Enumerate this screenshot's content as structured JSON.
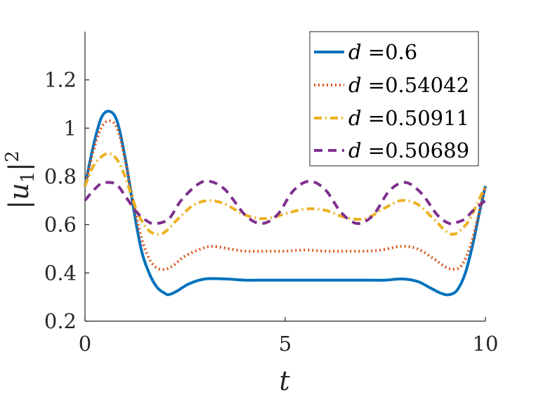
{
  "chart_data": {
    "type": "line",
    "title": "",
    "xlabel": "t",
    "ylabel": "|u_1|^2",
    "ylabel_parts": {
      "bar_left": "|",
      "var": "u",
      "sub": "1",
      "bar_right": "|",
      "sup": "2"
    },
    "xlim": [
      0,
      10
    ],
    "ylim": [
      0.2,
      1.4
    ],
    "xticks": [
      0,
      5,
      10
    ],
    "xtick_labels": [
      "0",
      "5",
      "10"
    ],
    "yticks": [
      0.2,
      0.4,
      0.6,
      0.8,
      1.0,
      1.2
    ],
    "ytick_labels": [
      "0.2",
      "0.4",
      "0.6",
      "0.8",
      "1",
      "1.2"
    ],
    "grid": false,
    "legend_position": "top-right",
    "series": [
      {
        "name": "d =0.6",
        "d_symbol": "d",
        "d_value": "=0.6",
        "color": "#0072BD",
        "style": "solid",
        "x": [
          0,
          0.2,
          0.4,
          0.6,
          0.8,
          1.0,
          1.2,
          1.4,
          1.6,
          1.8,
          2.0,
          2.1,
          2.3,
          2.6,
          3.0,
          3.5,
          4.0,
          4.5,
          5.0,
          5.5,
          6.0,
          6.5,
          7.0,
          7.5,
          7.9,
          8.3,
          8.6,
          8.9,
          9.1,
          9.3,
          9.5,
          9.7,
          9.85,
          10.0
        ],
        "y": [
          0.76,
          0.92,
          1.04,
          1.07,
          1.03,
          0.88,
          0.68,
          0.5,
          0.4,
          0.34,
          0.315,
          0.31,
          0.325,
          0.355,
          0.375,
          0.375,
          0.37,
          0.37,
          0.37,
          0.37,
          0.37,
          0.37,
          0.37,
          0.37,
          0.375,
          0.365,
          0.34,
          0.315,
          0.31,
          0.33,
          0.4,
          0.53,
          0.65,
          0.76
        ]
      },
      {
        "name": "d =0.54042",
        "d_symbol": "d",
        "d_value": "=0.54042",
        "color": "#D95319",
        "style": "dotted",
        "x": [
          0,
          0.2,
          0.4,
          0.6,
          0.8,
          1.0,
          1.2,
          1.4,
          1.6,
          1.8,
          2.0,
          2.2,
          2.5,
          2.9,
          3.2,
          3.6,
          4.0,
          4.5,
          5.0,
          5.5,
          6.0,
          6.5,
          7.0,
          7.4,
          7.9,
          8.3,
          8.7,
          9.0,
          9.2,
          9.4,
          9.6,
          9.8,
          10.0
        ],
        "y": [
          0.76,
          0.9,
          1.0,
          1.03,
          1.0,
          0.87,
          0.7,
          0.55,
          0.46,
          0.42,
          0.415,
          0.43,
          0.47,
          0.5,
          0.51,
          0.5,
          0.49,
          0.49,
          0.49,
          0.495,
          0.49,
          0.49,
          0.49,
          0.495,
          0.51,
          0.5,
          0.46,
          0.425,
          0.415,
          0.43,
          0.5,
          0.62,
          0.76
        ]
      },
      {
        "name": "d =0.50911",
        "d_symbol": "d",
        "d_value": "=0.50911",
        "color": "#EDB120",
        "style": "dashdot",
        "x": [
          0,
          0.2,
          0.4,
          0.6,
          0.8,
          1.0,
          1.2,
          1.4,
          1.6,
          1.8,
          2.0,
          2.3,
          2.7,
          3.1,
          3.5,
          4.0,
          4.5,
          5.0,
          5.5,
          6.0,
          6.5,
          7.0,
          7.5,
          7.9,
          8.3,
          8.7,
          9.0,
          9.2,
          9.4,
          9.6,
          9.8,
          10.0
        ],
        "y": [
          0.76,
          0.84,
          0.88,
          0.895,
          0.87,
          0.8,
          0.7,
          0.62,
          0.575,
          0.56,
          0.57,
          0.62,
          0.68,
          0.7,
          0.685,
          0.64,
          0.625,
          0.645,
          0.665,
          0.66,
          0.63,
          0.625,
          0.67,
          0.7,
          0.685,
          0.625,
          0.575,
          0.56,
          0.58,
          0.62,
          0.69,
          0.76
        ]
      },
      {
        "name": "d =0.50689",
        "d_symbol": "d",
        "d_value": "=0.50689",
        "color": "#7E2F8E",
        "style": "dashed",
        "x": [
          0,
          0.2,
          0.4,
          0.6,
          0.8,
          1.0,
          1.3,
          1.6,
          1.8,
          2.1,
          2.4,
          2.8,
          3.1,
          3.5,
          4.0,
          4.4,
          4.8,
          5.2,
          5.6,
          6.0,
          6.4,
          6.8,
          7.2,
          7.6,
          8.0,
          8.4,
          8.8,
          9.1,
          9.3,
          9.5,
          9.7,
          10.0
        ],
        "y": [
          0.7,
          0.74,
          0.77,
          0.775,
          0.765,
          0.72,
          0.65,
          0.61,
          0.605,
          0.625,
          0.7,
          0.765,
          0.78,
          0.745,
          0.64,
          0.605,
          0.64,
          0.74,
          0.78,
          0.745,
          0.65,
          0.605,
          0.64,
          0.74,
          0.775,
          0.73,
          0.64,
          0.605,
          0.61,
          0.625,
          0.66,
          0.7
        ]
      }
    ]
  }
}
